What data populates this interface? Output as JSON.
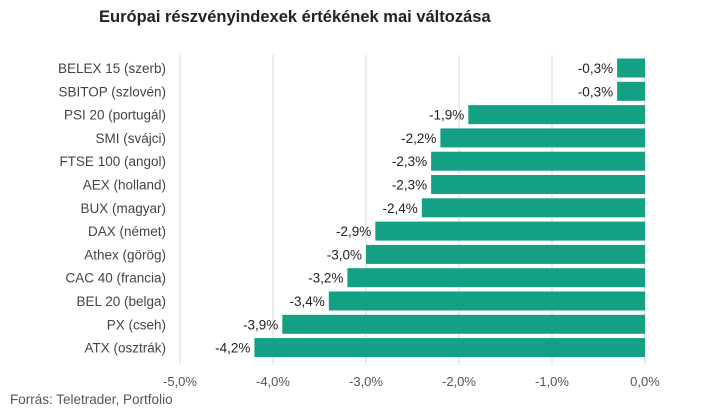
{
  "chart_data": {
    "type": "bar",
    "orientation": "horizontal",
    "title": "Európai részvényindexek értékének mai változása",
    "categories": [
      "BELEX 15 (szerb)",
      "SBITOP (szlovén)",
      "PSI 20 (portugál)",
      "SMI (svájci)",
      "FTSE 100 (angol)",
      "AEX (holland)",
      "BUX (magyar)",
      "DAX (német)",
      "Athex (görög)",
      "CAC 40 (francia)",
      "BEL 20 (belga)",
      "PX (cseh)",
      "ATX (osztrák)"
    ],
    "values": [
      -0.3,
      -0.3,
      -1.9,
      -2.2,
      -2.3,
      -2.3,
      -2.4,
      -2.9,
      -3.0,
      -3.2,
      -3.4,
      -3.9,
      -4.2
    ],
    "data_labels": [
      "-0,3%",
      "-0,3%",
      "-1,9%",
      "-2,2%",
      "-2,3%",
      "-2,3%",
      "-2,4%",
      "-2,9%",
      "-3,0%",
      "-3,2%",
      "-3,4%",
      "-3,9%",
      "-4,2%"
    ],
    "xlim": [
      -5.0,
      0.0
    ],
    "xticks": [
      -5.0,
      -4.0,
      -3.0,
      -2.0,
      -1.0,
      0.0
    ],
    "xtick_labels": [
      "-5,0%",
      "-4,0%",
      "-3,0%",
      "-2,0%",
      "-1,0%",
      "0,0%"
    ],
    "xlabel": "",
    "ylabel": "",
    "grid": "vertical",
    "legend": "none",
    "bar_color": "#14a085"
  },
  "source": "Forrás: Teletrader, Portfolio"
}
